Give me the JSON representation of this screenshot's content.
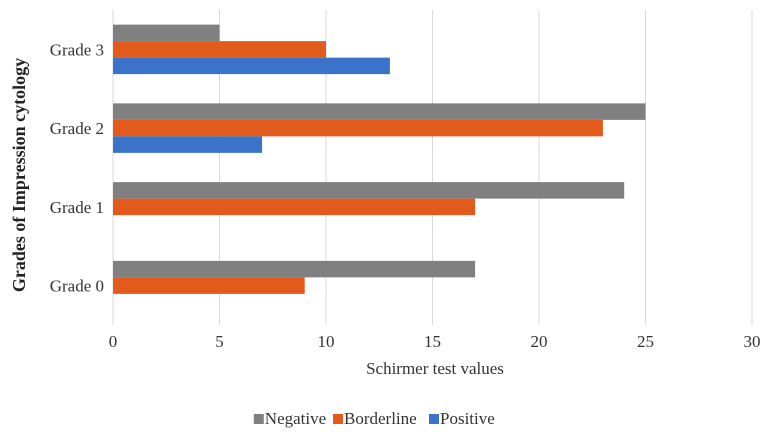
{
  "chart_data": {
    "type": "bar",
    "orientation": "horizontal",
    "categories": [
      "Grade 0",
      "Grade 1",
      "Grade 2",
      "Grade 3"
    ],
    "series": [
      {
        "name": "Negative",
        "color": "#808080",
        "values": [
          17,
          24,
          25,
          5
        ]
      },
      {
        "name": "Borderline",
        "color": "#e35a1d",
        "values": [
          9,
          17,
          23,
          10
        ]
      },
      {
        "name": "Positive",
        "color": "#3a73c9",
        "values": [
          0,
          0,
          7,
          13
        ]
      }
    ],
    "title": "",
    "xlabel": "Schirmer test values",
    "ylabel": "Grades of Impression cytology",
    "xlim": [
      0,
      30
    ],
    "xticks": [
      0,
      5,
      10,
      15,
      20,
      25,
      30
    ],
    "grid": "vertical",
    "legend_position": "bottom"
  }
}
